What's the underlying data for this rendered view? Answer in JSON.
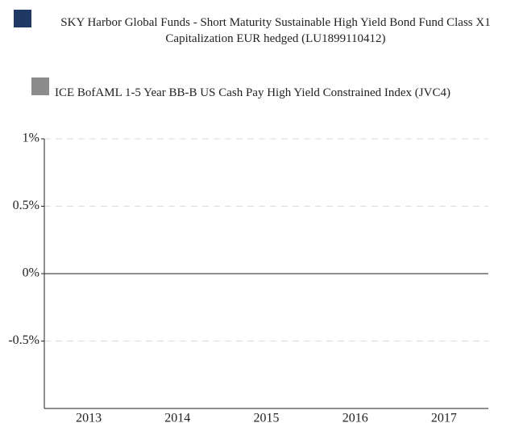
{
  "chart_data": {
    "type": "bar",
    "categories": [
      "2013",
      "2014",
      "2015",
      "2016",
      "2017"
    ],
    "series": [
      {
        "name": "SKY Harbor Global Funds - Short Maturity Sustainable High Yield Bond Fund Class X1 Capitalization EUR hedged (LU1899110412)",
        "color": "#1f3864",
        "values": [
          null,
          null,
          null,
          null,
          null
        ]
      },
      {
        "name": "ICE BofAML 1-5 Year BB-B US Cash Pay High Yield Constrained Index (JVC4)",
        "color": "#8c8c8c",
        "values": [
          null,
          null,
          null,
          null,
          null
        ]
      }
    ],
    "ylim": [
      -1,
      1
    ],
    "yticks": [
      {
        "value": 1,
        "label": "1%"
      },
      {
        "value": 0.5,
        "label": "0.5%"
      },
      {
        "value": 0,
        "label": "0%"
      },
      {
        "value": -0.5,
        "label": "-0.5%"
      }
    ],
    "grid": true
  }
}
